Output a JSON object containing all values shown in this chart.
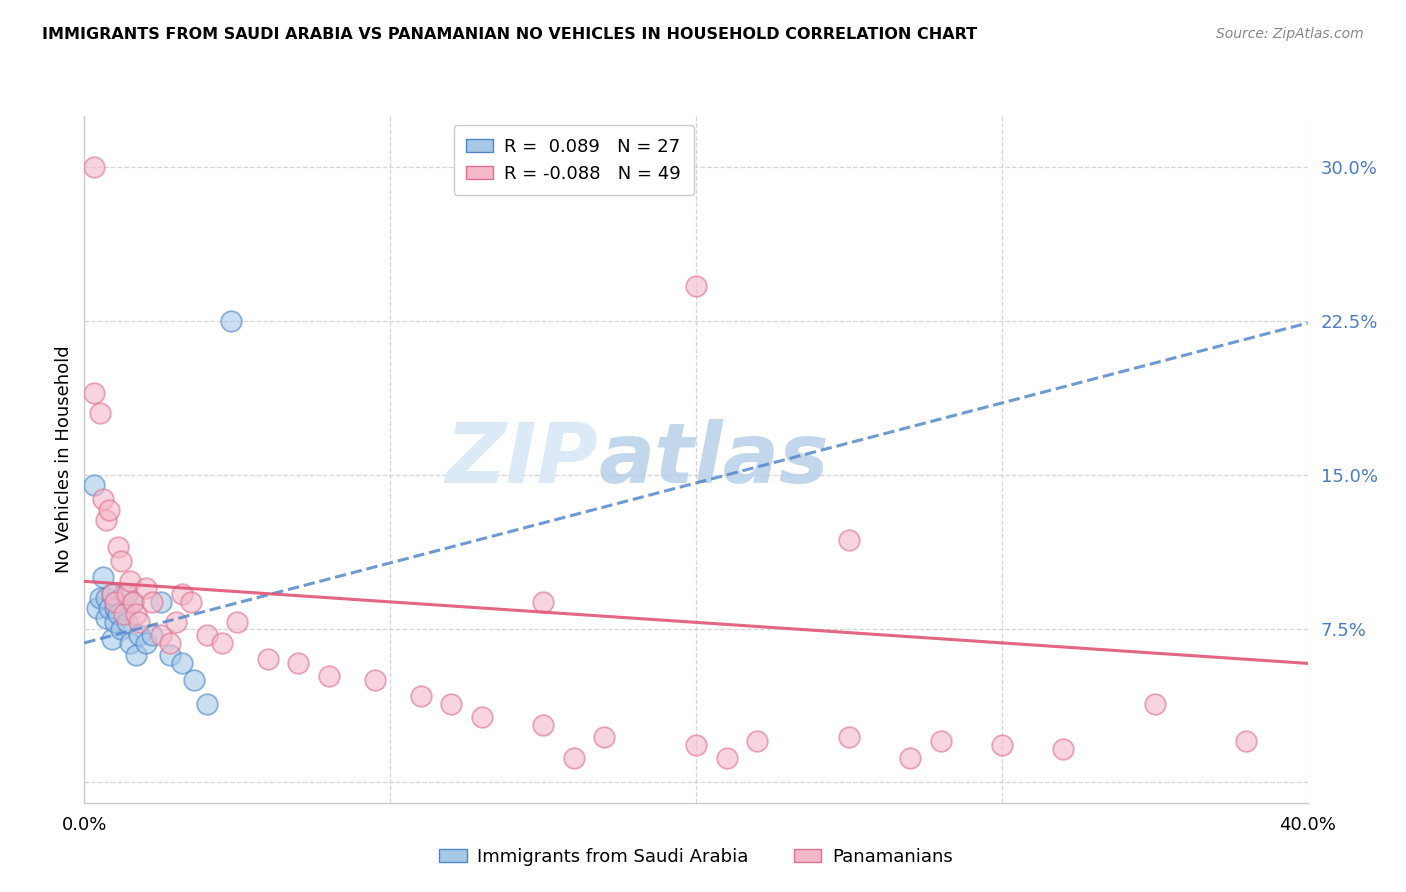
{
  "title": "IMMIGRANTS FROM SAUDI ARABIA VS PANAMANIAN NO VEHICLES IN HOUSEHOLD CORRELATION CHART",
  "source": "Source: ZipAtlas.com",
  "ylabel": "No Vehicles in Household",
  "yticks": [
    0.0,
    0.075,
    0.15,
    0.225,
    0.3
  ],
  "ytick_labels": [
    "",
    "7.5%",
    "15.0%",
    "22.5%",
    "30.0%"
  ],
  "xlim": [
    0.0,
    0.4
  ],
  "ylim": [
    -0.01,
    0.325
  ],
  "legend_blue_r": "R =  0.089",
  "legend_blue_n": "N = 27",
  "legend_pink_r": "R = -0.088",
  "legend_pink_n": "N = 49",
  "label_blue": "Immigrants from Saudi Arabia",
  "label_pink": "Panamanians",
  "watermark_zip": "ZIP",
  "watermark_atlas": "atlas",
  "blue_fill": "#a8c8e8",
  "blue_edge": "#4a86c8",
  "pink_fill": "#f4b8c8",
  "pink_edge": "#e07090",
  "blue_trend_color": "#5588cc",
  "pink_trend_color": "#e05575",
  "yaxis_label_color": "#4a7cc7",
  "blue_scatter_x": [
    0.003,
    0.004,
    0.005,
    0.006,
    0.007,
    0.007,
    0.008,
    0.009,
    0.009,
    0.01,
    0.01,
    0.011,
    0.012,
    0.013,
    0.014,
    0.015,
    0.016,
    0.017,
    0.018,
    0.02,
    0.022,
    0.025,
    0.028,
    0.032,
    0.036,
    0.04,
    0.048
  ],
  "blue_scatter_y": [
    0.145,
    0.085,
    0.09,
    0.1,
    0.08,
    0.09,
    0.085,
    0.07,
    0.092,
    0.078,
    0.085,
    0.082,
    0.075,
    0.092,
    0.078,
    0.068,
    0.088,
    0.062,
    0.072,
    0.068,
    0.072,
    0.088,
    0.062,
    0.058,
    0.05,
    0.038,
    0.225
  ],
  "pink_scatter_x": [
    0.003,
    0.003,
    0.005,
    0.006,
    0.007,
    0.008,
    0.009,
    0.01,
    0.011,
    0.012,
    0.013,
    0.014,
    0.015,
    0.016,
    0.017,
    0.018,
    0.02,
    0.022,
    0.025,
    0.028,
    0.03,
    0.032,
    0.035,
    0.04,
    0.045,
    0.05,
    0.06,
    0.07,
    0.08,
    0.095,
    0.11,
    0.12,
    0.13,
    0.15,
    0.17,
    0.2,
    0.22,
    0.25,
    0.28,
    0.3,
    0.32,
    0.35,
    0.38,
    0.25,
    0.2,
    0.15,
    0.27,
    0.21,
    0.16
  ],
  "pink_scatter_y": [
    0.3,
    0.19,
    0.18,
    0.138,
    0.128,
    0.133,
    0.092,
    0.088,
    0.115,
    0.108,
    0.082,
    0.092,
    0.098,
    0.088,
    0.082,
    0.078,
    0.095,
    0.088,
    0.072,
    0.068,
    0.078,
    0.092,
    0.088,
    0.072,
    0.068,
    0.078,
    0.06,
    0.058,
    0.052,
    0.05,
    0.042,
    0.038,
    0.032,
    0.028,
    0.022,
    0.018,
    0.02,
    0.022,
    0.02,
    0.018,
    0.016,
    0.038,
    0.02,
    0.118,
    0.242,
    0.088,
    0.012,
    0.012,
    0.012
  ],
  "blue_trend_x": [
    0.0,
    0.4
  ],
  "blue_trend_y": [
    0.068,
    0.224
  ],
  "pink_trend_x": [
    0.0,
    0.4
  ],
  "pink_trend_y": [
    0.098,
    0.058
  ]
}
